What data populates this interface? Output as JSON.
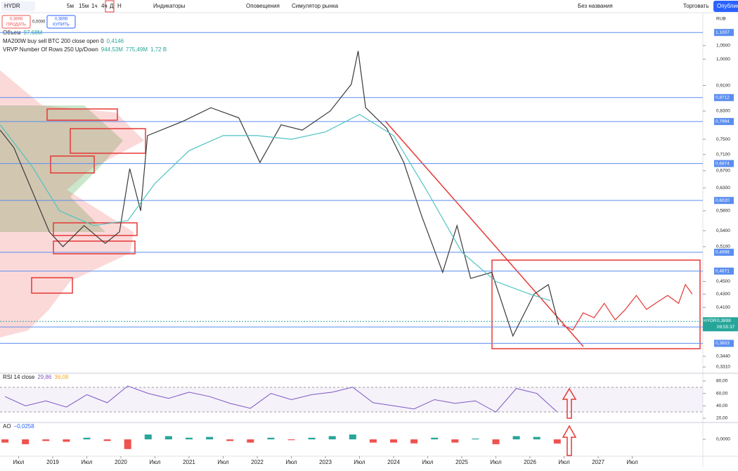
{
  "toolbar": {
    "symbol": "HYDR",
    "intervals": [
      "5м",
      "15м",
      "1ч",
      "4ч",
      "Д",
      "Н"
    ],
    "indicators": "Индикаторы",
    "alerts": "Оповещения",
    "replay": "Симулятор рынка",
    "layout_name": "Без названия",
    "trade": "Торговать",
    "publish": "Опубликовать"
  },
  "order": {
    "sell_price": "0,3898",
    "sell": "ПРОДАТЬ",
    "spread": "0,0000",
    "buy_price": "0,3898",
    "buy": "КУПИТЬ"
  },
  "legend": [
    {
      "name": "Объем",
      "values": [
        "97,68M"
      ]
    },
    {
      "name": "MA200W buy sell BTC 200 close open 0",
      "values": [
        "0,4146"
      ]
    },
    {
      "name": "VRVP Number Of Rows 250 Up/Down",
      "values": [
        "944,53M",
        "775,49M",
        "1,72 B"
      ]
    }
  ],
  "chart_data": [
    {
      "type": "line",
      "log_scale": true,
      "currency": "RUB",
      "xlim": [
        2018.227,
        2028.536
      ],
      "ylim": [
        0.3244,
        1.176
      ],
      "xticks": [
        {
          "value": 2018.5,
          "label": "Июл"
        },
        2019,
        {
          "value": 2019.5,
          "label": "Июл"
        },
        2020,
        {
          "value": 2020.5,
          "label": "Июл"
        },
        2021,
        {
          "value": 2021.5,
          "label": "Июл"
        },
        2022,
        {
          "value": 2022.5,
          "label": "Июл"
        },
        2023,
        {
          "value": 2023.5,
          "label": "Июл"
        },
        2024,
        {
          "value": 2024.5,
          "label": "Июл"
        },
        2025,
        {
          "value": 2025.5,
          "label": "Июл"
        },
        2026,
        {
          "value": 2026.5,
          "label": "Июл"
        },
        2027,
        {
          "value": 2027.5,
          "label": "Июл"
        }
      ],
      "yticks": [
        {
          "value": 1.05,
          "label": "1,0500"
        },
        {
          "value": 1.0,
          "label": "1,0000"
        },
        {
          "value": 0.91,
          "label": "0,9100"
        },
        {
          "value": 0.83,
          "label": "0,8300"
        },
        {
          "value": 0.75,
          "label": "0,7500"
        },
        {
          "value": 0.71,
          "label": "0,7100"
        },
        {
          "value": 0.67,
          "label": "0,6700"
        },
        {
          "value": 0.63,
          "label": "0,6300"
        },
        {
          "value": 0.58,
          "label": "0,5800"
        },
        {
          "value": 0.54,
          "label": "0,5400"
        },
        {
          "value": 0.51,
          "label": "0,5100"
        },
        {
          "value": 0.45,
          "label": "0,4500"
        },
        {
          "value": 0.43,
          "label": "0,4300"
        },
        {
          "value": 0.41,
          "label": "0,4100"
        },
        {
          "value": 0.344,
          "label": "0,3440"
        },
        {
          "value": 0.331,
          "label": "0,3310"
        }
      ],
      "levels_color": "#5b8def",
      "levels": [
        {
          "value": 1.1007,
          "label": "1,1007"
        },
        {
          "value": 0.8712,
          "label": "0,8712"
        },
        {
          "value": 0.7994,
          "label": "0,7994"
        },
        {
          "value": 0.6874,
          "label": "0,6874"
        },
        {
          "value": 0.602,
          "label": "0,6020"
        },
        {
          "value": 0.4998,
          "label": "0,4998"
        },
        {
          "value": 0.4671,
          "label": "0,4671"
        },
        {
          "value": 0.3821,
          "label": "0,3821"
        },
        {
          "value": 0.3603,
          "label": "0,3603"
        }
      ],
      "last_price": {
        "value": 0.3898,
        "label": "0,3898",
        "symbol": "HYDR",
        "countdown": "09:55:37",
        "color": "#26a69a"
      },
      "series": [
        {
          "color": "#3a3a3a",
          "x": [
            2018.23,
            2018.43,
            2018.69,
            2018.95,
            2019.15,
            2019.46,
            2019.77,
            2019.98,
            2020.13,
            2020.29,
            2020.39,
            2020.91,
            2021.32,
            2021.73,
            2022.04,
            2022.35,
            2022.66,
            2023.07,
            2023.38,
            2023.48,
            2023.59,
            2023.9,
            2024.15,
            2024.41,
            2024.72,
            2024.93,
            2025.13,
            2025.44,
            2025.75,
            2026.06,
            2026.27,
            2026.42
          ],
          "values": [
            0.775,
            0.728,
            0.626,
            0.538,
            0.51,
            0.55,
            0.516,
            0.538,
            0.675,
            0.58,
            0.76,
            0.8,
            0.84,
            0.81,
            0.69,
            0.79,
            0.775,
            0.83,
            0.914,
            1.03,
            0.84,
            0.78,
            0.69,
            0.57,
            0.465,
            0.55,
            0.455,
            0.465,
            0.37,
            0.43,
            0.445,
            0.385
          ]
        },
        {
          "color": "#4fc3c3",
          "x": [
            2018.23,
            2018.7,
            2019.1,
            2019.6,
            2020.1,
            2020.5,
            2021.0,
            2021.5,
            2022.0,
            2022.5,
            2023.0,
            2023.5,
            2024.0,
            2024.5,
            2025.0,
            2025.5,
            2026.0,
            2026.3
          ],
          "values": [
            0.79,
            0.68,
            0.58,
            0.55,
            0.56,
            0.64,
            0.72,
            0.76,
            0.76,
            0.75,
            0.77,
            0.82,
            0.76,
            0.62,
            0.5,
            0.45,
            0.43,
            0.42
          ]
        },
        {
          "color": "#e53935",
          "x": [
            2026.47,
            2026.63,
            2026.78,
            2026.94,
            2027.09,
            2027.25,
            2027.4,
            2027.56,
            2027.71,
            2027.87,
            2028.02,
            2028.18,
            2028.28,
            2028.38
          ],
          "values": [
            0.385,
            0.378,
            0.402,
            0.395,
            0.416,
            0.392,
            0.407,
            0.428,
            0.407,
            0.418,
            0.428,
            0.416,
            0.445,
            0.43
          ]
        }
      ]
    },
    {
      "type": "line",
      "name": "RSI 14 close",
      "values_printed": [
        "29,86",
        "36,08"
      ],
      "color": "#7e57c2",
      "xlim": [
        2018.227,
        2028.536
      ],
      "ylim": [
        14.3,
        91.3
      ],
      "yticks": [
        {
          "value": 80,
          "label": "80,00"
        },
        {
          "value": 60,
          "label": "60,00"
        },
        {
          "value": 40,
          "label": "40,00"
        },
        {
          "value": 20,
          "label": "20,00"
        }
      ],
      "x": [
        2018.3,
        2018.6,
        2018.9,
        2019.2,
        2019.5,
        2019.8,
        2020.1,
        2020.4,
        2020.7,
        2021.0,
        2021.3,
        2021.6,
        2021.9,
        2022.2,
        2022.5,
        2022.8,
        2023.1,
        2023.4,
        2023.7,
        2024.0,
        2024.3,
        2024.6,
        2024.9,
        2025.2,
        2025.5,
        2025.8,
        2026.1,
        2026.4
      ],
      "values": [
        55,
        40,
        48,
        38,
        58,
        45,
        72,
        60,
        52,
        62,
        55,
        44,
        36,
        60,
        50,
        58,
        62,
        70,
        45,
        40,
        35,
        50,
        44,
        48,
        30,
        68,
        60,
        30
      ]
    },
    {
      "type": "bar",
      "name": "AO",
      "values_printed": [
        "−0,0258"
      ],
      "up_color": "#26a69a",
      "down_color": "#ef5350",
      "xlim": [
        2018.227,
        2028.536
      ],
      "ylim": [
        -0.1,
        0.1
      ],
      "yticks": [
        {
          "value": 0,
          "label": "0,0000"
        }
      ],
      "x": [
        2018.3,
        2018.6,
        2018.9,
        2019.2,
        2019.5,
        2019.8,
        2020.1,
        2020.4,
        2020.7,
        2021.0,
        2021.3,
        2021.6,
        2021.9,
        2022.2,
        2022.5,
        2022.8,
        2023.1,
        2023.4,
        2023.7,
        2024.0,
        2024.3,
        2024.6,
        2024.9,
        2025.2,
        2025.5,
        2025.8,
        2026.1,
        2026.4
      ],
      "values": [
        -0.02,
        -0.03,
        -0.01,
        -0.015,
        0.01,
        -0.01,
        -0.06,
        0.03,
        0.02,
        0.01,
        0.015,
        -0.01,
        -0.02,
        0.01,
        -0.005,
        0.01,
        0.02,
        0.03,
        -0.02,
        -0.02,
        -0.025,
        0.01,
        -0.02,
        0.005,
        -0.03,
        0.02,
        0.015,
        -0.0258
      ]
    }
  ]
}
